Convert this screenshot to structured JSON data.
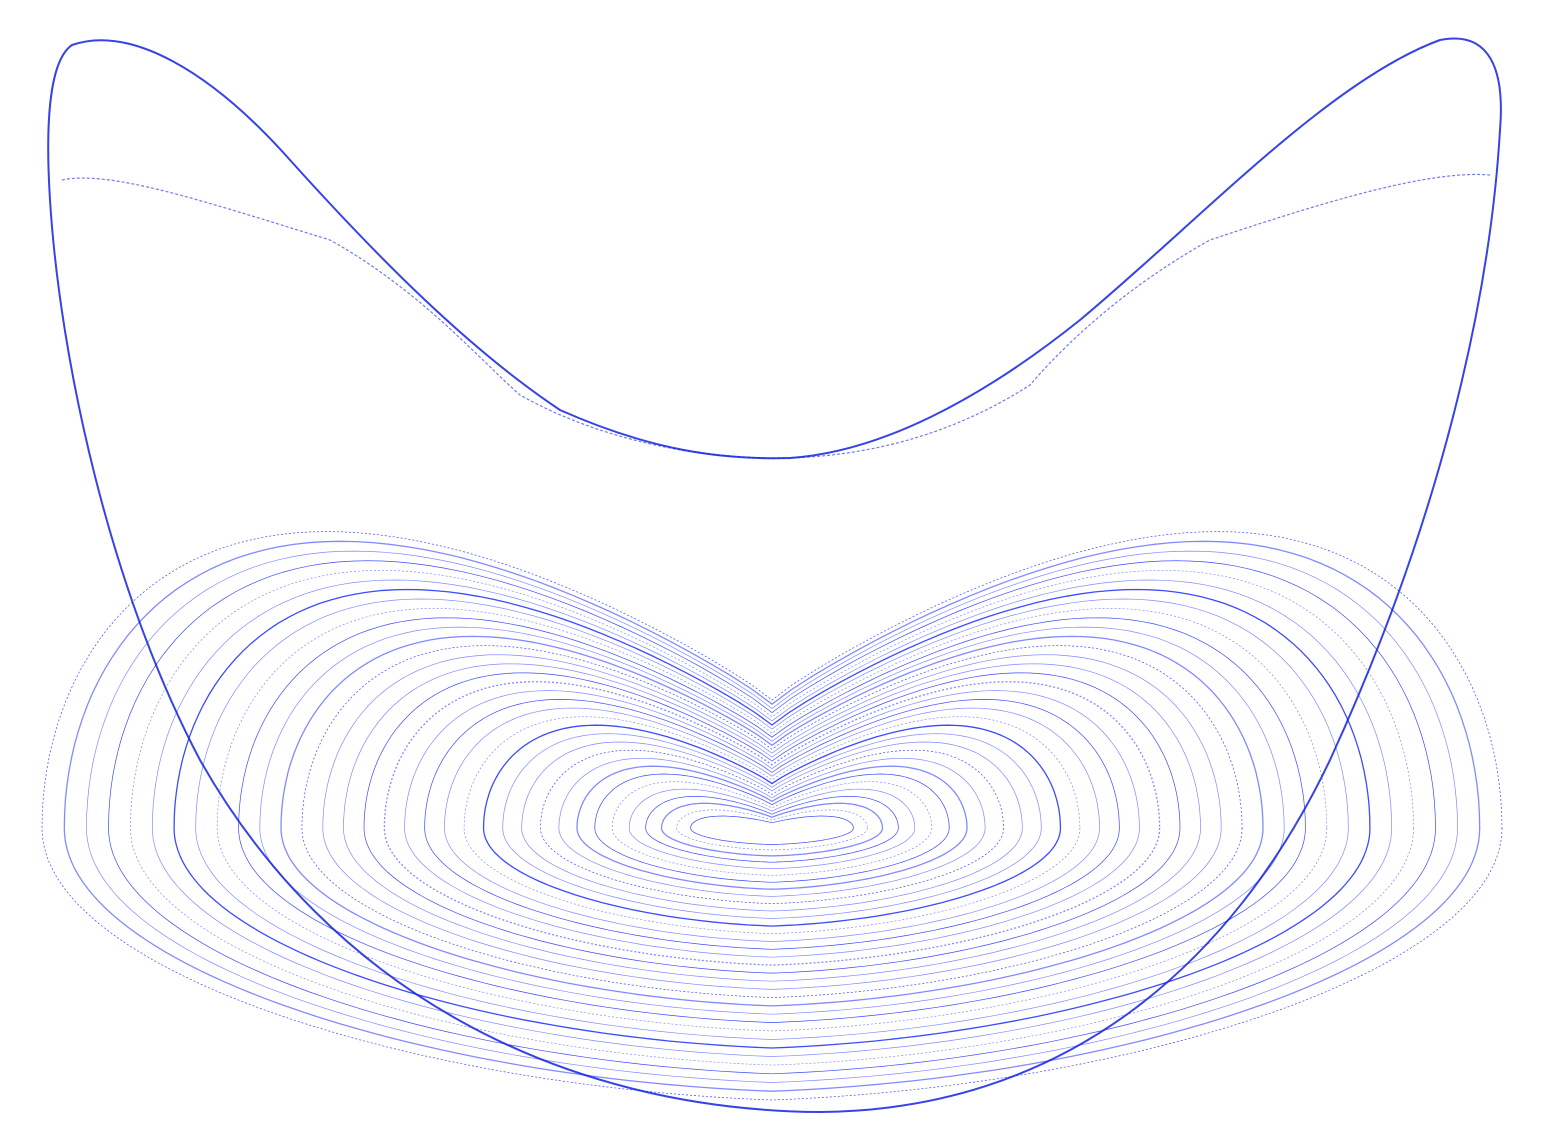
{
  "figure": {
    "background_color": "#ffffff",
    "curve_color": "#1a2cff",
    "outline_color": "#1422e0"
  }
}
